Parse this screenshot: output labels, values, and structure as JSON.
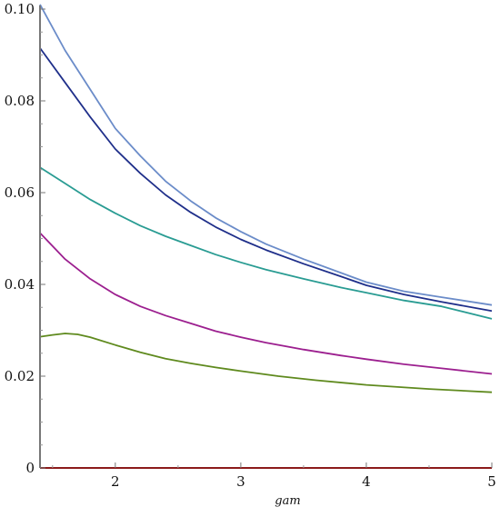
{
  "chart_data": {
    "type": "line",
    "title": "",
    "xlabel": "gam",
    "ylabel": "",
    "xlim": [
      1.4,
      5
    ],
    "ylim": [
      0,
      0.1
    ],
    "xticks": [
      2,
      3,
      4,
      5
    ],
    "yticks": [
      0,
      0.02,
      0.04,
      0.06,
      0.08,
      0.1
    ],
    "xtick_labels": [
      "2",
      "3",
      "4",
      "5"
    ],
    "ytick_labels": [
      "0",
      "0.02",
      "0.04",
      "0.06",
      "0.08",
      "0.10"
    ],
    "grid": false,
    "legend": "none",
    "series": [
      {
        "color": "#6b8cc9",
        "x": [
          1.4,
          1.6,
          1.8,
          2.0,
          2.2,
          2.4,
          2.6,
          2.8,
          3.0,
          3.2,
          3.5,
          3.8,
          4.0,
          4.3,
          4.6,
          5.0
        ],
        "y": [
          0.101,
          0.091,
          0.0825,
          0.074,
          0.068,
          0.0625,
          0.0582,
          0.0545,
          0.0515,
          0.0488,
          0.0455,
          0.0425,
          0.0405,
          0.0385,
          0.0372,
          0.0355
        ]
      },
      {
        "color": "#1f2f8a",
        "x": [
          1.4,
          1.6,
          1.8,
          2.0,
          2.2,
          2.4,
          2.6,
          2.8,
          3.0,
          3.2,
          3.5,
          3.8,
          4.0,
          4.3,
          4.6,
          5.0
        ],
        "y": [
          0.0915,
          0.084,
          0.0765,
          0.0695,
          0.0642,
          0.0595,
          0.0557,
          0.0525,
          0.0498,
          0.0475,
          0.0445,
          0.0417,
          0.0398,
          0.0378,
          0.0362,
          0.0342
        ]
      },
      {
        "color": "#2a9c93",
        "x": [
          1.4,
          1.6,
          1.8,
          2.0,
          2.2,
          2.4,
          2.6,
          2.8,
          3.0,
          3.2,
          3.5,
          3.8,
          4.0,
          4.3,
          4.6,
          5.0
        ],
        "y": [
          0.0655,
          0.062,
          0.0585,
          0.0555,
          0.0528,
          0.0505,
          0.0485,
          0.0465,
          0.0448,
          0.0432,
          0.0412,
          0.0393,
          0.0382,
          0.0365,
          0.0352,
          0.0325
        ]
      },
      {
        "color": "#9c1f8f",
        "x": [
          1.4,
          1.6,
          1.8,
          2.0,
          2.2,
          2.4,
          2.6,
          2.8,
          3.0,
          3.2,
          3.5,
          3.8,
          4.0,
          4.3,
          4.6,
          5.0
        ],
        "y": [
          0.0512,
          0.0455,
          0.0412,
          0.0378,
          0.0352,
          0.0332,
          0.0315,
          0.0298,
          0.0285,
          0.0273,
          0.0258,
          0.0245,
          0.0237,
          0.0226,
          0.0217,
          0.0205
        ]
      },
      {
        "color": "#5f8a1e",
        "x": [
          1.4,
          1.5,
          1.6,
          1.7,
          1.8,
          2.0,
          2.2,
          2.4,
          2.6,
          2.8,
          3.0,
          3.3,
          3.6,
          4.0,
          4.5,
          5.0
        ],
        "y": [
          0.0286,
          0.029,
          0.0293,
          0.0291,
          0.0285,
          0.0268,
          0.0252,
          0.0238,
          0.0228,
          0.0219,
          0.0211,
          0.02,
          0.0191,
          0.0181,
          0.0172,
          0.0165
        ]
      },
      {
        "color": "#8b1a1a",
        "x": [
          1.4,
          5.0
        ],
        "y": [
          0,
          0
        ]
      }
    ]
  }
}
